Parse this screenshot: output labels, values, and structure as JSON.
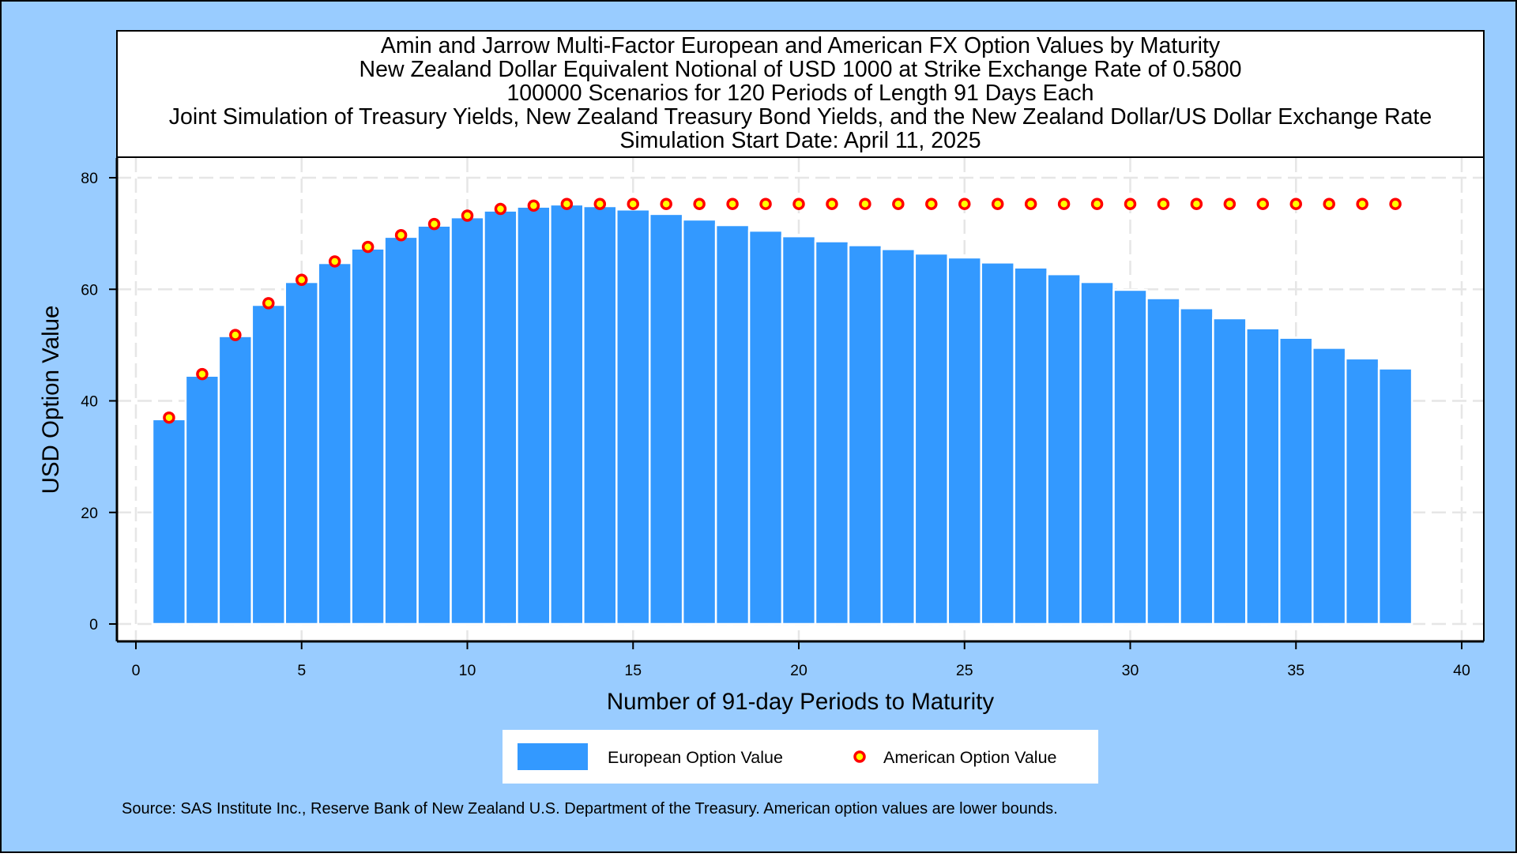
{
  "chart_data": {
    "type": "bar",
    "title_lines": [
      "Amin and Jarrow Multi-Factor European and American FX Option Values by Maturity",
      "New Zealand Dollar Equivalent Notional of USD 1000 at Strike Exchange Rate of  0.5800",
      "100000 Scenarios for 120 Periods of Length 91 Days Each",
      "Joint Simulation of Treasury Yields, New Zealand Treasury Bond Yields, and the New Zealand Dollar/US Dollar Exchange Rate",
      "Simulation Start Date: April 11, 2025"
    ],
    "xlabel": "Number of 91-day Periods to Maturity",
    "ylabel": "USD Option Value",
    "xlim": [
      0,
      40
    ],
    "ylim": [
      0,
      80
    ],
    "xticks": [
      "0",
      "5",
      "10",
      "15",
      "20",
      "25",
      "30",
      "35",
      "40"
    ],
    "yticks": [
      "0",
      "20",
      "40",
      "60",
      "80"
    ],
    "grid": true,
    "legend_position": "bottom",
    "x": [
      1,
      2,
      3,
      4,
      5,
      6,
      7,
      8,
      9,
      10,
      11,
      12,
      13,
      14,
      15,
      16,
      17,
      18,
      19,
      20,
      21,
      22,
      23,
      24,
      25,
      26,
      27,
      28,
      29,
      30,
      31,
      32,
      33,
      34,
      35,
      36,
      37,
      38
    ],
    "series": [
      {
        "name": "European Option Value",
        "type": "bar",
        "color": "#3399ff",
        "values": [
          36.7,
          44.5,
          51.6,
          57.2,
          61.3,
          64.7,
          67.3,
          69.4,
          71.4,
          72.9,
          74.1,
          74.8,
          75.2,
          74.9,
          74.3,
          73.5,
          72.5,
          71.5,
          70.5,
          69.5,
          68.6,
          67.9,
          67.2,
          66.4,
          65.7,
          64.8,
          63.9,
          62.7,
          61.3,
          59.9,
          58.4,
          56.6,
          54.8,
          53.0,
          51.3,
          49.5,
          47.6,
          45.8
        ]
      },
      {
        "name": "American Option Value",
        "type": "scatter",
        "color": "#ff0000",
        "fill": "#ffff00",
        "values": [
          37.0,
          44.8,
          51.8,
          57.5,
          61.7,
          65.0,
          67.6,
          69.7,
          71.7,
          73.2,
          74.4,
          75.0,
          75.3,
          75.3,
          75.3,
          75.3,
          75.3,
          75.3,
          75.3,
          75.3,
          75.3,
          75.3,
          75.3,
          75.3,
          75.3,
          75.3,
          75.3,
          75.3,
          75.3,
          75.3,
          75.3,
          75.3,
          75.3,
          75.3,
          75.3,
          75.3,
          75.3,
          75.3
        ]
      }
    ],
    "footnote": "Source: SAS Institute Inc., Reserve Bank of New Zealand U.S. Department of the Treasury. American option values are lower bounds."
  },
  "colors": {
    "background": "#99ccff",
    "plot_background": "#ffffff",
    "grid": "#e6e6e6",
    "bar_fill": "#3399ff",
    "bar_outline": "#ffffff",
    "marker_fill": "#ffff00",
    "marker_outline": "#ff0000"
  }
}
